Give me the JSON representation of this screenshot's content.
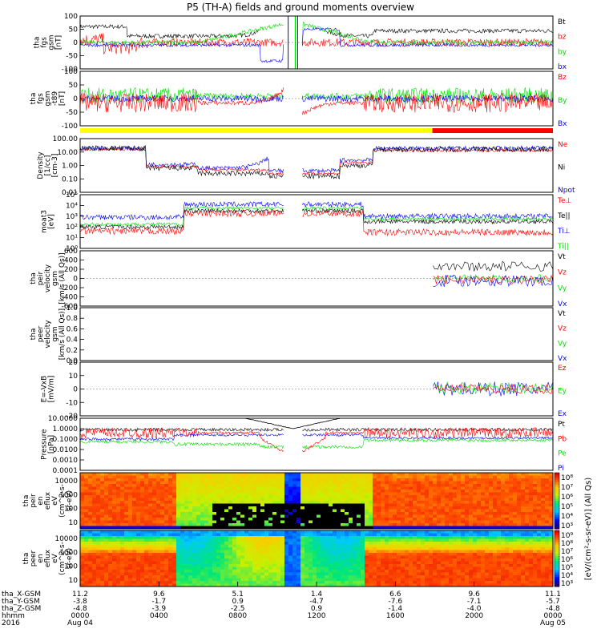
{
  "title": "P5 (TH-A) fields and ground moments overview",
  "colors": {
    "black": "#000000",
    "red": "#ff0000",
    "green": "#00e000",
    "blue": "#0000ff",
    "yellow": "#ffff00"
  },
  "chart_data": [
    {
      "type": "line",
      "panel": "fgs_gsm",
      "ylabel": [
        "tha",
        "fgs",
        "gsm",
        "[nT]"
      ],
      "ylim": [
        -100,
        100
      ],
      "yticks": [
        "100",
        "50",
        "0",
        "-50",
        "-100"
      ],
      "legend": [
        {
          "name": "Bt",
          "color": "black"
        },
        {
          "name": "bz",
          "color": "red"
        },
        {
          "name": "by",
          "color": "green"
        },
        {
          "name": "bx",
          "color": "blue"
        }
      ]
    },
    {
      "type": "line",
      "panel": "fgs_gsm_t89",
      "ylabel": [
        "tha",
        "fgs",
        "gsm",
        "-t89",
        "[nT]"
      ],
      "ylim": [
        -125,
        125
      ],
      "yticks": [
        "100",
        "50",
        "0",
        "-50",
        "-100"
      ],
      "legend": [
        {
          "name": "Bz",
          "color": "red"
        },
        {
          "name": "By",
          "color": "green"
        },
        {
          "name": "Bx",
          "color": "blue"
        }
      ]
    },
    {
      "type": "line",
      "panel": "density",
      "log": true,
      "ylabel": [
        "Density",
        "[1/cc]",
        "[cm-3]"
      ],
      "ylim": [
        0.001,
        1000
      ],
      "yticks": [
        "100.00",
        "10.00",
        "1.00",
        "0.10",
        "0.01"
      ],
      "legend": [
        {
          "name": "Ne",
          "color": "red"
        },
        {
          "name": "Ni",
          "color": "black"
        },
        {
          "name": "Npot",
          "color": "blue"
        }
      ]
    },
    {
      "type": "line",
      "panel": "temperature",
      "log": true,
      "ylabel": [
        "moat3",
        "[eV]"
      ],
      "ylim": [
        1,
        100000
      ],
      "yticks": [
        "10⁵",
        "10⁴",
        "10³",
        "10²",
        "10¹",
        "10⁰"
      ],
      "legend": [
        {
          "name": "Te⊥",
          "color": "red"
        },
        {
          "name": "Te||",
          "color": "black"
        },
        {
          "name": "Ti⊥",
          "color": "blue"
        },
        {
          "name": "Ti||",
          "color": "green"
        }
      ]
    },
    {
      "type": "line",
      "panel": "peir_velocity",
      "ylabel": [
        "tha",
        "peir",
        "velocity",
        "gsm",
        "[km/s (All Qs)]"
      ],
      "ylim": [
        -600,
        600
      ],
      "yticks": [
        "600",
        "400",
        "200",
        "0",
        "-200",
        "-400",
        "-600"
      ],
      "legend": [
        {
          "name": "Vt",
          "color": "black"
        },
        {
          "name": "Vz",
          "color": "red"
        },
        {
          "name": "Vy",
          "color": "green"
        },
        {
          "name": "Vx",
          "color": "blue"
        }
      ]
    },
    {
      "type": "line",
      "panel": "peer_velocity",
      "ylabel": [
        "tha",
        "peer",
        "velocity",
        "gsm",
        "[km/s (All Qs)]"
      ],
      "ylim": [
        0,
        1
      ],
      "yticks": [
        "1.0",
        "0.8",
        "0.6",
        "0.4",
        "0.2",
        "0.0"
      ],
      "legend": [
        {
          "name": "Vt",
          "color": "black"
        },
        {
          "name": "Vz",
          "color": "red"
        },
        {
          "name": "Vy",
          "color": "green"
        },
        {
          "name": "Vx",
          "color": "blue"
        }
      ]
    },
    {
      "type": "line",
      "panel": "efield",
      "ylabel": [
        "E=-VxB",
        "[mV/m]"
      ],
      "ylim": [
        -20,
        20
      ],
      "yticks": [
        "20",
        "10",
        "0",
        "-10",
        "-20"
      ],
      "legend": [
        {
          "name": "Ez",
          "color": "red"
        },
        {
          "name": "Ey",
          "color": "green"
        },
        {
          "name": "Ex",
          "color": "blue"
        }
      ]
    },
    {
      "type": "line",
      "panel": "pressure",
      "log": true,
      "ylabel": [
        "Pressure",
        "[nPa]"
      ],
      "ylim": [
        0.0001,
        30
      ],
      "yticks": [
        "10.0000",
        "1.0000",
        "0.1000",
        "0.0100",
        "0.0010",
        "0.0001"
      ],
      "legend": [
        {
          "name": "Pt",
          "color": "black"
        },
        {
          "name": "Pb",
          "color": "red"
        },
        {
          "name": "Pe",
          "color": "green"
        },
        {
          "name": "Pi",
          "color": "blue"
        }
      ]
    },
    {
      "type": "heatmap",
      "panel": "peir_spectrogram",
      "log": true,
      "ylabel": [
        "tha",
        "peir",
        "en",
        "eflux",
        "eV",
        "(cm^2-s-",
        "sr-eV)"
      ],
      "ylim": [
        5,
        30000
      ],
      "yticks": [
        "10000",
        "1000",
        "100",
        "10"
      ],
      "colorbar_ticks": [
        "10⁸",
        "10⁷",
        "10⁶",
        "10⁵",
        "10⁴",
        "10³"
      ]
    },
    {
      "type": "heatmap",
      "panel": "peer_spectrogram",
      "log": true,
      "ylabel": [
        "tha",
        "peer",
        "en",
        "eflux",
        "eV",
        "(cm^2-s-",
        "sr-eV)"
      ],
      "ylim": [
        5,
        30000
      ],
      "yticks": [
        "10000",
        "1000",
        "100",
        "10"
      ],
      "colorbar_ticks": [
        "10⁹",
        "10⁸",
        "10⁷",
        "10⁶",
        "10⁵",
        "10⁴",
        "10³"
      ]
    }
  ],
  "colorbar_label": "[eV/(cm²-s-sr-eV)] (All Qs)",
  "orbit_bar": {
    "segments": [
      {
        "color": "yellow",
        "from": 0,
        "to": 0.745
      },
      {
        "color": "red",
        "from": 0.745,
        "to": 1
      }
    ]
  },
  "xaxis": {
    "row_labels": [
      "tha_X-GSM",
      "tha_Y-GSM",
      "tha_Z-GSM",
      "hhmm",
      "2016"
    ],
    "columns": [
      {
        "x": "11.2",
        "y": "-3.8",
        "z": "-4.8",
        "t": "0000",
        "d": "Aug 04"
      },
      {
        "x": "9.6",
        "y": "-1.7",
        "z": "-3.9",
        "t": "0400",
        "d": ""
      },
      {
        "x": "5.1",
        "y": "0.9",
        "z": "-2.5",
        "t": "0800",
        "d": ""
      },
      {
        "x": "1.4",
        "y": "-4.7",
        "z": "0.9",
        "t": "1200",
        "d": ""
      },
      {
        "x": "6.6",
        "y": "-7.6",
        "z": "-1.4",
        "t": "1600",
        "d": ""
      },
      {
        "x": "9.6",
        "y": "-7.1",
        "z": "-4.0",
        "t": "2000",
        "d": ""
      },
      {
        "x": "11.1",
        "y": "-5.7",
        "z": "-4.8",
        "t": "0000",
        "d": "Aug 05"
      }
    ]
  }
}
